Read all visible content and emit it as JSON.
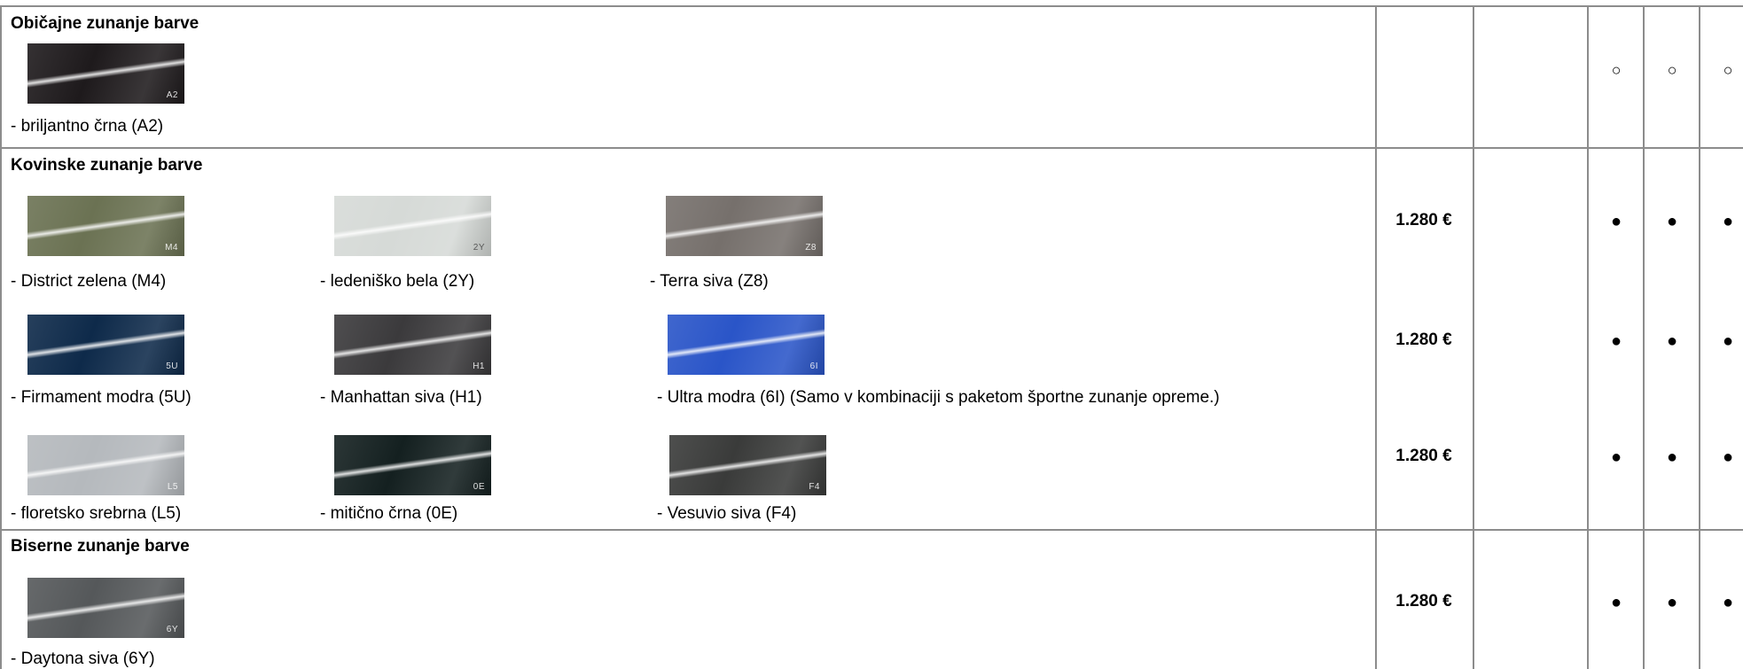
{
  "sections": {
    "standard": {
      "title": "Običajne zunanje barve"
    },
    "metallic": {
      "title": "Kovinske zunanje barve"
    },
    "pearl": {
      "title": "Biserne zunanje barve"
    }
  },
  "colors": {
    "a2": {
      "code": "A2",
      "label": "- briljantno črna (A2)",
      "tint": "#1e1a1c"
    },
    "m4": {
      "code": "M4",
      "label": "-  District zelena (M4)",
      "tint": "#6b7253"
    },
    "2y": {
      "code": "2Y",
      "label": "- ledeniško bela (2Y)",
      "tint": "#d6dad7"
    },
    "z8": {
      "code": "Z8",
      "label": "- Terra siva (Z8)",
      "tint": "#76706c"
    },
    "5u": {
      "code": "5U",
      "label": "- Firmament modra (5U)",
      "tint": "#0e2a4a"
    },
    "h1": {
      "code": "H1",
      "label": "- Manhattan siva (H1)",
      "tint": "#3b3a3c"
    },
    "6i": {
      "code": "6I",
      "label": "- Ultra modra (6I) (Samo v kombinaciji s paketom športne zunanje opreme.)",
      "tint": "#2a55c8"
    },
    "l5": {
      "code": "L5",
      "label": "- floretsko srebrna (L5)",
      "tint": "#b5b9bd"
    },
    "0e": {
      "code": "0E",
      "label": "- mitično črna (0E)",
      "tint": "#142020"
    },
    "f4": {
      "code": "F4",
      "label": "- Vesuvio siva (F4)",
      "tint": "#3a3b3a"
    },
    "6y": {
      "code": "6Y",
      "label": "-  Daytona siva (6Y)",
      "tint": "#55585a"
    }
  },
  "prices": {
    "metallic_row1": "1.280 €",
    "metallic_row2": "1.280 €",
    "metallic_row3": "1.280 €",
    "pearl_row1": "1.280 €"
  },
  "marks": {
    "optional": "○",
    "available": "●"
  }
}
